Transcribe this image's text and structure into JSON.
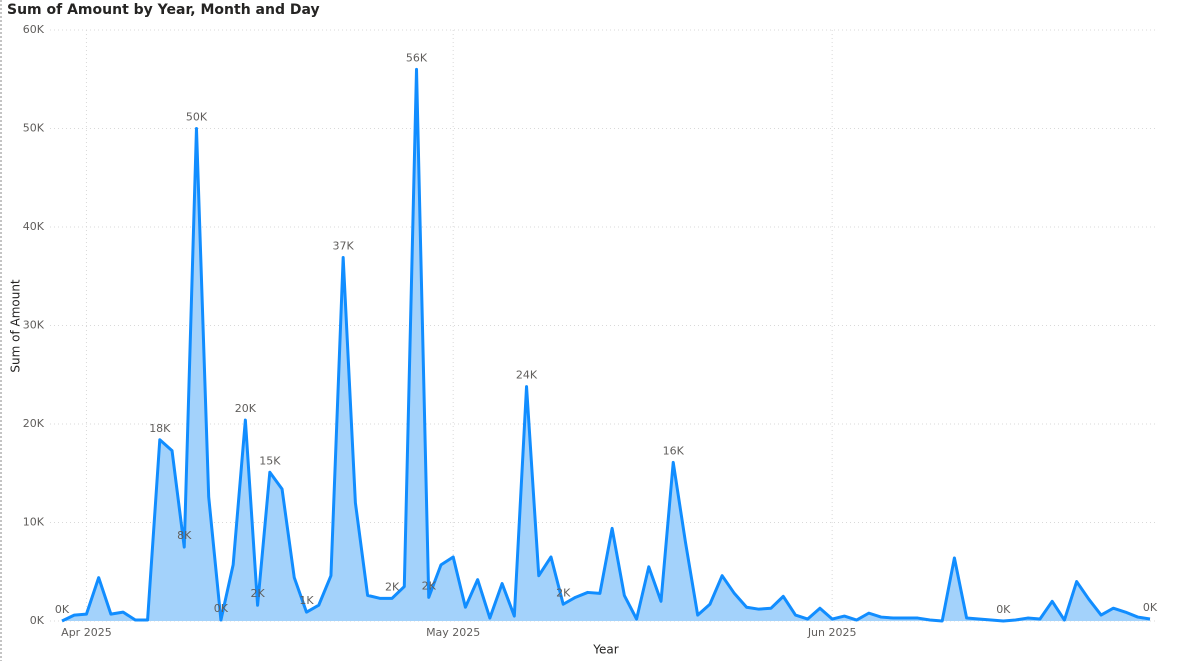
{
  "chart_data": {
    "type": "area",
    "title": "Sum of Amount by Year, Month and Day",
    "x_label": "Year",
    "y_label": "Sum of Amount",
    "categories": [
      null,
      null,
      "Apr 2025",
      null,
      null,
      null,
      null,
      null,
      null,
      null,
      null,
      null,
      null,
      null,
      null,
      null,
      null,
      null,
      null,
      null,
      null,
      null,
      null,
      null,
      null,
      null,
      null,
      null,
      null,
      null,
      null,
      null,
      "May 2025",
      null,
      null,
      null,
      null,
      null,
      null,
      null,
      null,
      null,
      null,
      null,
      null,
      null,
      null,
      null,
      null,
      null,
      null,
      null,
      null,
      null,
      null,
      null,
      null,
      null,
      null,
      null,
      null,
      null,
      null,
      "Jun 2025",
      null,
      null,
      null,
      null,
      null,
      null,
      null,
      null,
      null,
      null,
      null,
      null,
      null,
      null,
      null,
      null,
      null,
      null,
      null,
      null,
      null,
      null,
      null,
      null,
      null,
      null
    ],
    "values": [
      0,
      600,
      700,
      4400,
      700,
      900,
      100,
      100,
      18400,
      17300,
      7500,
      50000,
      12600,
      100,
      5700,
      20400,
      1600,
      15100,
      13400,
      4400,
      900,
      1600,
      4600,
      36900,
      12000,
      2600,
      2300,
      2300,
      3500,
      56000,
      2400,
      5700,
      6500,
      1400,
      4200,
      300,
      3800,
      500,
      23800,
      4600,
      6500,
      1700,
      2400,
      2900,
      2800,
      9400,
      2600,
      200,
      5500,
      2000,
      16100,
      8000,
      600,
      1700,
      4600,
      2800,
      1400,
      1200,
      1300,
      2500,
      600,
      200,
      1300,
      200,
      500,
      100,
      800,
      400,
      300,
      300,
      300,
      100,
      0,
      6400,
      300,
      200,
      100,
      0,
      100,
      300,
      200,
      2000,
      100,
      4000,
      2200,
      600,
      1300,
      900,
      400,
      200
    ],
    "value_labels": [
      "0K",
      null,
      null,
      null,
      null,
      null,
      null,
      null,
      "18K",
      null,
      "8K",
      "50K",
      null,
      "0K",
      null,
      "20K",
      "2K",
      "15K",
      null,
      null,
      "1K",
      null,
      null,
      "37K",
      null,
      null,
      null,
      "2K",
      null,
      "56K",
      "2K",
      null,
      null,
      null,
      null,
      null,
      null,
      null,
      "24K",
      null,
      null,
      "2K",
      null,
      null,
      null,
      null,
      null,
      null,
      null,
      null,
      "16K",
      null,
      null,
      null,
      null,
      null,
      null,
      null,
      null,
      null,
      null,
      null,
      null,
      null,
      null,
      null,
      null,
      null,
      null,
      null,
      null,
      null,
      null,
      null,
      null,
      null,
      null,
      "0K",
      null,
      null,
      null,
      null,
      null,
      null,
      null,
      null,
      null,
      null,
      null,
      "0K"
    ],
    "color": "#118dff",
    "fill_color": "#a3d2fb",
    "ylim": [
      0,
      60000
    ],
    "yticks": [
      {
        "value": 0,
        "label": "0K"
      },
      {
        "value": 10000,
        "label": "10K"
      },
      {
        "value": 20000,
        "label": "20K"
      },
      {
        "value": 30000,
        "label": "30K"
      },
      {
        "value": 40000,
        "label": "40K"
      },
      {
        "value": 50000,
        "label": "50K"
      },
      {
        "value": 60000,
        "label": "60K"
      }
    ],
    "grid": true
  }
}
